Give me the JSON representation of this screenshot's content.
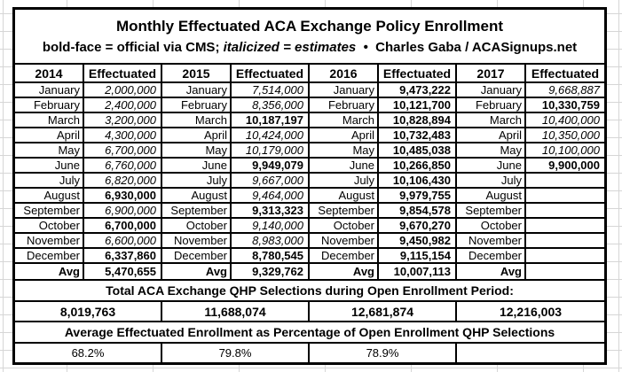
{
  "title": "Monthly Effectuated ACA Exchange Policy Enrollment",
  "subtitle": {
    "prefix": "bold-face = official via CMS; ",
    "italic": "italicized = estimates",
    "suffix": "  •  Charles Gaba / ACASignups.net"
  },
  "legend_meaning": {
    "bold": "official via CMS",
    "italic": "estimate"
  },
  "enrollment_table": {
    "value_header": "Effectuated",
    "avg_label": "Avg",
    "years": [
      "2014",
      "2015",
      "2016",
      "2017"
    ],
    "months": [
      "January",
      "February",
      "March",
      "April",
      "May",
      "June",
      "July",
      "August",
      "September",
      "October",
      "November",
      "December"
    ],
    "series": [
      {
        "year": "2014",
        "values": [
          [
            "2,000,000",
            "e"
          ],
          [
            "2,400,000",
            "e"
          ],
          [
            "3,200,000",
            "e"
          ],
          [
            "4,300,000",
            "e"
          ],
          [
            "6,700,000",
            "e"
          ],
          [
            "6,760,000",
            "e"
          ],
          [
            "6,820,000",
            "e"
          ],
          [
            "6,930,000",
            "o"
          ],
          [
            "6,900,000",
            "e"
          ],
          [
            "6,700,000",
            "o"
          ],
          [
            "6,600,000",
            "e"
          ],
          [
            "6,337,860",
            "o"
          ]
        ],
        "avg": "5,470,655"
      },
      {
        "year": "2015",
        "values": [
          [
            "7,514,000",
            "e"
          ],
          [
            "8,356,000",
            "e"
          ],
          [
            "10,187,197",
            "o"
          ],
          [
            "10,424,000",
            "e"
          ],
          [
            "10,179,000",
            "e"
          ],
          [
            "9,949,079",
            "o"
          ],
          [
            "9,667,000",
            "e"
          ],
          [
            "9,464,000",
            "e"
          ],
          [
            "9,313,323",
            "o"
          ],
          [
            "9,140,000",
            "e"
          ],
          [
            "8,983,000",
            "e"
          ],
          [
            "8,780,545",
            "o"
          ]
        ],
        "avg": "9,329,762"
      },
      {
        "year": "2016",
        "values": [
          [
            "9,473,222",
            "o"
          ],
          [
            "10,121,700",
            "o"
          ],
          [
            "10,828,894",
            "o"
          ],
          [
            "10,732,483",
            "o"
          ],
          [
            "10,485,038",
            "o"
          ],
          [
            "10,266,850",
            "o"
          ],
          [
            "10,106,430",
            "o"
          ],
          [
            "9,979,755",
            "o"
          ],
          [
            "9,854,578",
            "o"
          ],
          [
            "9,670,270",
            "o"
          ],
          [
            "9,450,982",
            "o"
          ],
          [
            "9,115,154",
            "o"
          ]
        ],
        "avg": "10,007,113"
      },
      {
        "year": "2017",
        "values": [
          [
            "9,668,887",
            "e"
          ],
          [
            "10,330,759",
            "o"
          ],
          [
            "10,400,000",
            "e"
          ],
          [
            "10,350,000",
            "e"
          ],
          [
            "10,100,000",
            "e"
          ],
          [
            "9,900,000",
            "o"
          ],
          [
            "",
            ""
          ],
          [
            "",
            ""
          ],
          [
            "",
            ""
          ],
          [
            "",
            ""
          ],
          [
            "",
            ""
          ],
          [
            "",
            ""
          ]
        ],
        "avg": ""
      }
    ]
  },
  "totals": {
    "label": "Total ACA Exchange QHP Selections during Open Enrollment Period:",
    "values": [
      "8,019,763",
      "11,688,074",
      "12,681,874",
      "12,216,003"
    ]
  },
  "percentages": {
    "label": "Average Effectuated Enrollment as Percentage of Open Enrollment QHP Selections",
    "values": [
      "68.2%",
      "79.8%",
      "78.9%",
      ""
    ]
  },
  "colors": {
    "border": "#000000",
    "text": "#000000",
    "background": "#ffffff",
    "spreadsheet_gridline": "#d6d6d6"
  }
}
